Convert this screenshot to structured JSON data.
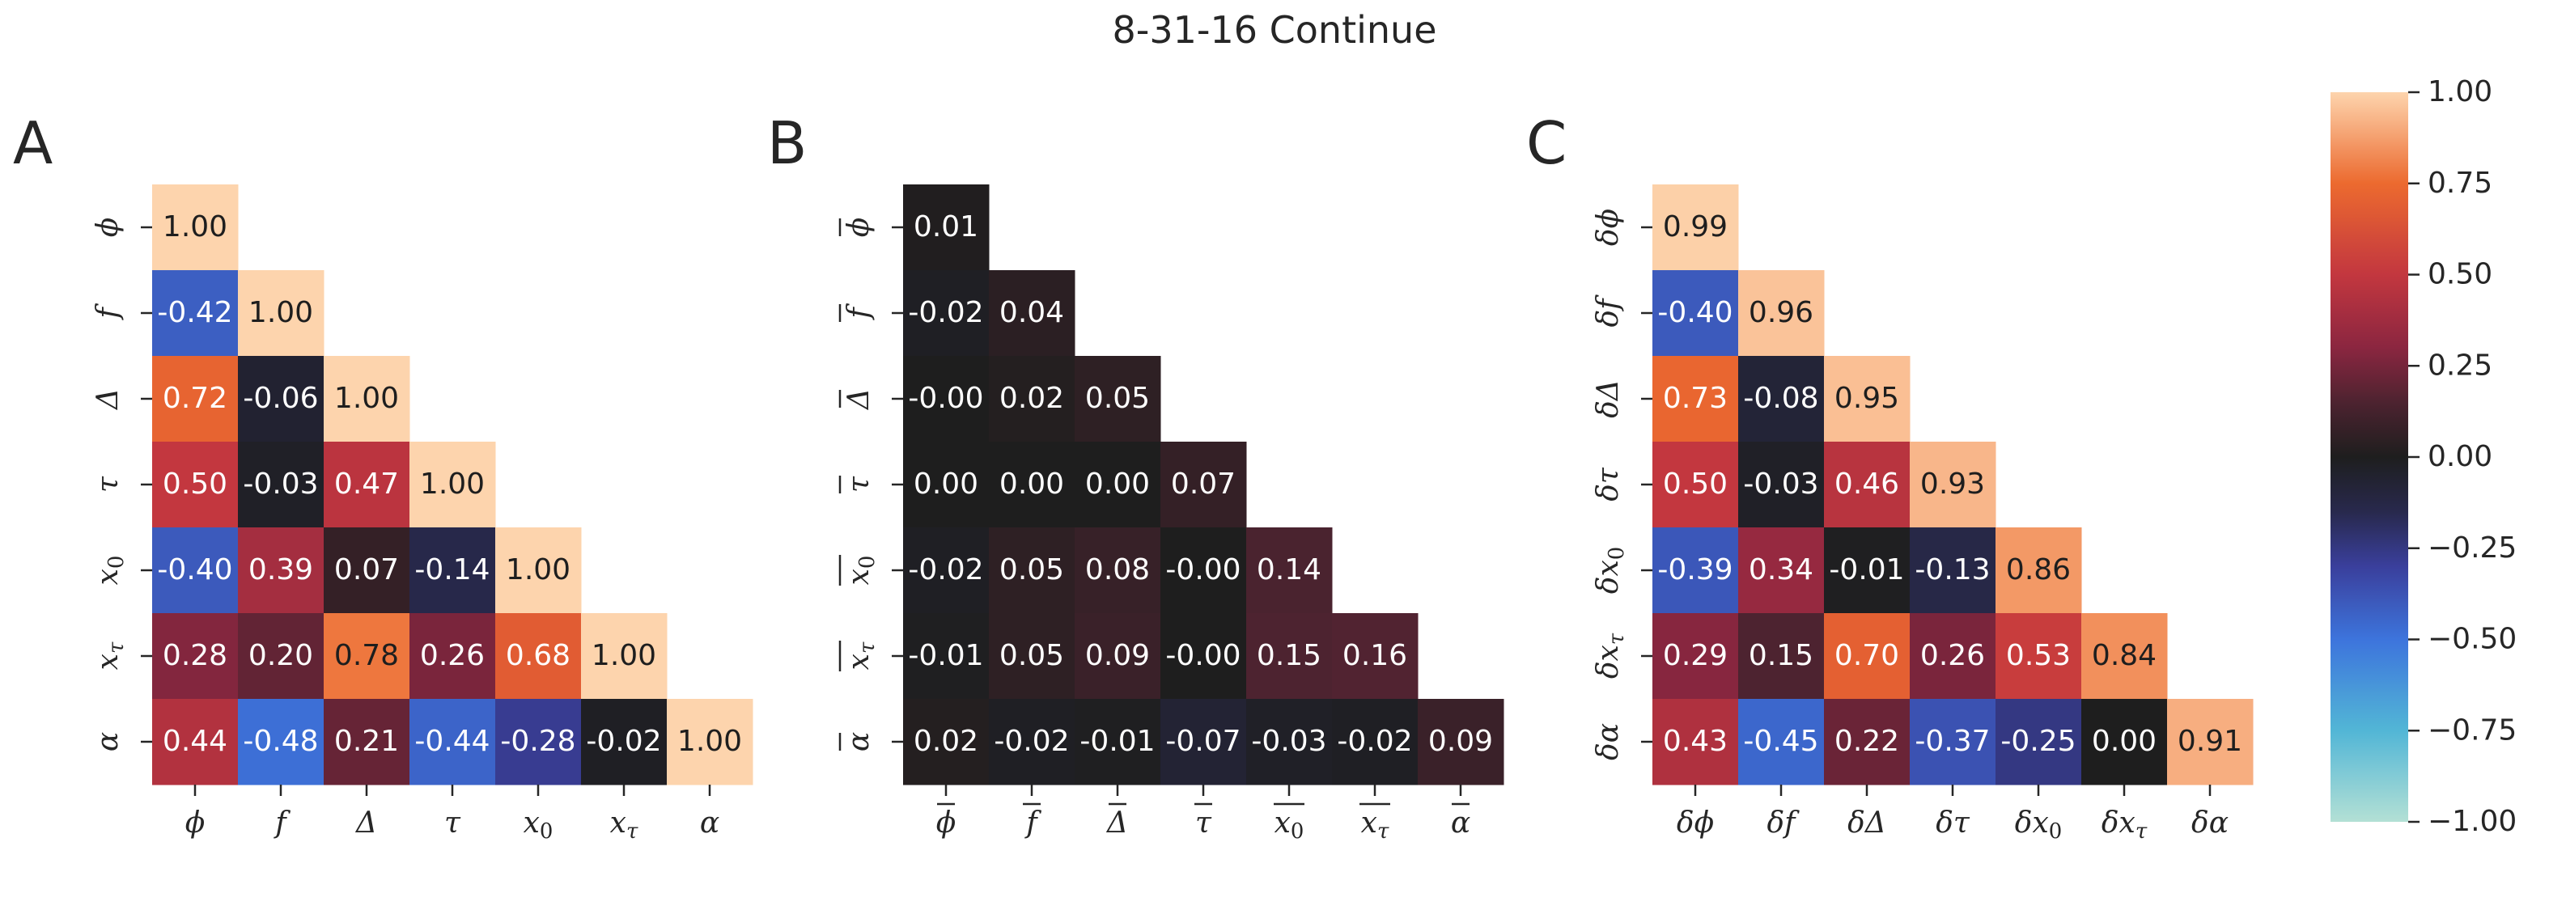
{
  "title": "8-31-16 Continue",
  "colors": {
    "colormap": "icefire",
    "stops": [
      [
        -1.0,
        "#b3e0d5"
      ],
      [
        -0.75,
        "#52b6d6"
      ],
      [
        -0.5,
        "#3d74dc"
      ],
      [
        -0.3,
        "#3a3f9c"
      ],
      [
        -0.15,
        "#28294d"
      ],
      [
        0.0,
        "#1e1e1e"
      ],
      [
        0.15,
        "#4d2330"
      ],
      [
        0.3,
        "#8b2640"
      ],
      [
        0.5,
        "#c3373f"
      ],
      [
        0.75,
        "#ec6a2f"
      ],
      [
        1.0,
        "#fdd4ad"
      ]
    ],
    "light_text": "#ffffff",
    "dark_text": "#1e1e1e"
  },
  "chart_data": [
    {
      "type": "heatmap",
      "panel": "A",
      "labels": [
        "ϕ",
        "f",
        "Δ",
        "τ",
        "x0",
        "xτ",
        "α"
      ],
      "tick_labels": [
        {
          "base": "ϕ",
          "sub": ""
        },
        {
          "base": "f",
          "sub": ""
        },
        {
          "base": "Δ",
          "sub": ""
        },
        {
          "base": "τ",
          "sub": ""
        },
        {
          "base": "x",
          "sub": "0"
        },
        {
          "base": "x",
          "sub": "τ"
        },
        {
          "base": "α",
          "sub": ""
        }
      ],
      "values": [
        [
          1.0
        ],
        [
          -0.42,
          1.0
        ],
        [
          0.72,
          -0.06,
          1.0
        ],
        [
          0.5,
          -0.03,
          0.47,
          1.0
        ],
        [
          -0.4,
          0.39,
          0.07,
          -0.14,
          1.0
        ],
        [
          0.28,
          0.2,
          0.78,
          0.26,
          0.68,
          1.0
        ],
        [
          0.44,
          -0.48,
          0.21,
          -0.44,
          -0.28,
          -0.02,
          1.0
        ]
      ],
      "annotations": [
        [
          "1.00"
        ],
        [
          "-0.42",
          "1.00"
        ],
        [
          "0.72",
          "-0.06",
          "1.00"
        ],
        [
          "0.50",
          "-0.03",
          "0.47",
          "1.00"
        ],
        [
          "-0.40",
          "0.39",
          "0.07",
          "-0.14",
          "1.00"
        ],
        [
          "0.28",
          "0.20",
          "0.78",
          "0.26",
          "0.68",
          "1.00"
        ],
        [
          "0.44",
          "-0.48",
          "0.21",
          "-0.44",
          "-0.28",
          "-0.02",
          "1.00"
        ]
      ]
    },
    {
      "type": "heatmap",
      "panel": "B",
      "labels": [
        "ϕ̄",
        "f̄",
        "Δ̄",
        "τ̄",
        "x0̄",
        "xτ̄",
        "ᾱ"
      ],
      "tick_labels": [
        {
          "base": "ϕ",
          "sub": "",
          "overline": true
        },
        {
          "base": "f",
          "sub": "",
          "overline": true
        },
        {
          "base": "Δ",
          "sub": "",
          "overline": true
        },
        {
          "base": "τ",
          "sub": "",
          "overline": true
        },
        {
          "base": "x",
          "sub": "0",
          "overline": true
        },
        {
          "base": "x",
          "sub": "τ",
          "overline": true
        },
        {
          "base": "α",
          "sub": "",
          "overline": true
        }
      ],
      "values": [
        [
          0.01
        ],
        [
          -0.02,
          0.04
        ],
        [
          -0.0,
          0.02,
          0.05
        ],
        [
          0.0,
          0.0,
          0.0,
          0.07
        ],
        [
          -0.02,
          0.05,
          0.08,
          -0.0,
          0.14
        ],
        [
          -0.01,
          0.05,
          0.09,
          -0.0,
          0.15,
          0.16
        ],
        [
          0.02,
          -0.02,
          -0.01,
          -0.07,
          -0.03,
          -0.02,
          0.09
        ]
      ],
      "annotations": [
        [
          "0.01"
        ],
        [
          "-0.02",
          "0.04"
        ],
        [
          "-0.00",
          "0.02",
          "0.05"
        ],
        [
          "0.00",
          "0.00",
          "0.00",
          "0.07"
        ],
        [
          "-0.02",
          "0.05",
          "0.08",
          "-0.00",
          "0.14"
        ],
        [
          "-0.01",
          "0.05",
          "0.09",
          "-0.00",
          "0.15",
          "0.16"
        ],
        [
          "0.02",
          "-0.02",
          "-0.01",
          "-0.07",
          "-0.03",
          "-0.02",
          "0.09"
        ]
      ]
    },
    {
      "type": "heatmap",
      "panel": "C",
      "labels": [
        "δϕ",
        "δf",
        "δΔ",
        "δτ",
        "δx0",
        "δxτ",
        "δα"
      ],
      "tick_labels": [
        {
          "base": "δϕ",
          "sub": ""
        },
        {
          "base": "δf",
          "sub": ""
        },
        {
          "base": "δΔ",
          "sub": ""
        },
        {
          "base": "δτ",
          "sub": ""
        },
        {
          "base": "δx",
          "sub": "0"
        },
        {
          "base": "δx",
          "sub": "τ"
        },
        {
          "base": "δα",
          "sub": ""
        }
      ],
      "values": [
        [
          0.99
        ],
        [
          -0.4,
          0.96
        ],
        [
          0.73,
          -0.08,
          0.95
        ],
        [
          0.5,
          -0.03,
          0.46,
          0.93
        ],
        [
          -0.39,
          0.34,
          -0.01,
          -0.13,
          0.86
        ],
        [
          0.29,
          0.15,
          0.7,
          0.26,
          0.53,
          0.84
        ],
        [
          0.43,
          -0.45,
          0.22,
          -0.37,
          -0.25,
          0.0,
          0.91
        ]
      ],
      "annotations": [
        [
          "0.99"
        ],
        [
          "-0.40",
          "0.96"
        ],
        [
          "0.73",
          "-0.08",
          "0.95"
        ],
        [
          "0.50",
          "-0.03",
          "0.46",
          "0.93"
        ],
        [
          "-0.39",
          "0.34",
          "-0.01",
          "-0.13",
          "0.86"
        ],
        [
          "0.29",
          "0.15",
          "0.70",
          "0.26",
          "0.53",
          "0.84"
        ],
        [
          "0.43",
          "-0.45",
          "0.22",
          "-0.37",
          "-0.25",
          "0.00",
          "0.91"
        ]
      ]
    }
  ],
  "colorbar": {
    "vmin": -1.0,
    "vmax": 1.0,
    "tick_values": [
      1.0,
      0.75,
      0.5,
      0.25,
      0.0,
      -0.25,
      -0.5,
      -0.75,
      -1.0
    ],
    "tick_labels": [
      "1.00",
      "0.75",
      "0.50",
      "0.25",
      "0.00",
      "−0.25",
      "−0.50",
      "−0.75",
      "−1.00"
    ]
  }
}
